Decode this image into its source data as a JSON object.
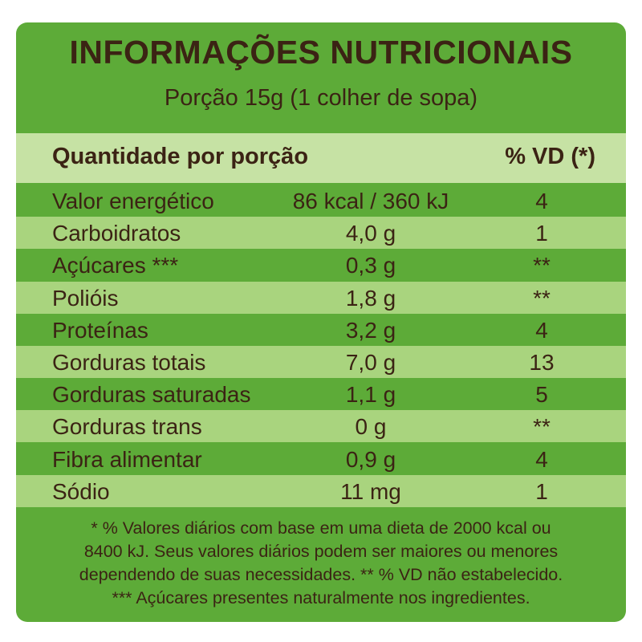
{
  "header": {
    "title": "INFORMAÇÕES NUTRICIONAIS",
    "subtitle": "Porção 15g (1 colher de sopa)"
  },
  "table": {
    "columns": [
      "Quantidade por porção",
      "% VD (*)"
    ],
    "rows": [
      [
        "Valor energético",
        "86 kcal / 360 kJ",
        "4"
      ],
      [
        "Carboidratos",
        "4,0 g",
        "1"
      ],
      [
        "Açúcares ***",
        "0,3 g",
        "**"
      ],
      [
        "Polióis",
        "1,8 g",
        "**"
      ],
      [
        "Proteínas",
        "3,2 g",
        "4"
      ],
      [
        "Gorduras totais",
        "7,0 g",
        "13"
      ],
      [
        "Gorduras saturadas",
        "1,1 g",
        "5"
      ],
      [
        "Gorduras trans",
        "0 g",
        "**"
      ],
      [
        "Fibra alimentar",
        "0,9 g",
        "4"
      ],
      [
        "Sódio",
        "11 mg",
        "1"
      ]
    ]
  },
  "footnote": {
    "lines": [
      "* % Valores diários com base em uma dieta de 2000 kcal ou",
      "8400 kJ. Seus valores diários podem ser maiores ou menores",
      "dependendo de suas necessidades. ** % VD não estabelecido.",
      "*** Açúcares presentes naturalmente nos ingredientes."
    ]
  }
}
